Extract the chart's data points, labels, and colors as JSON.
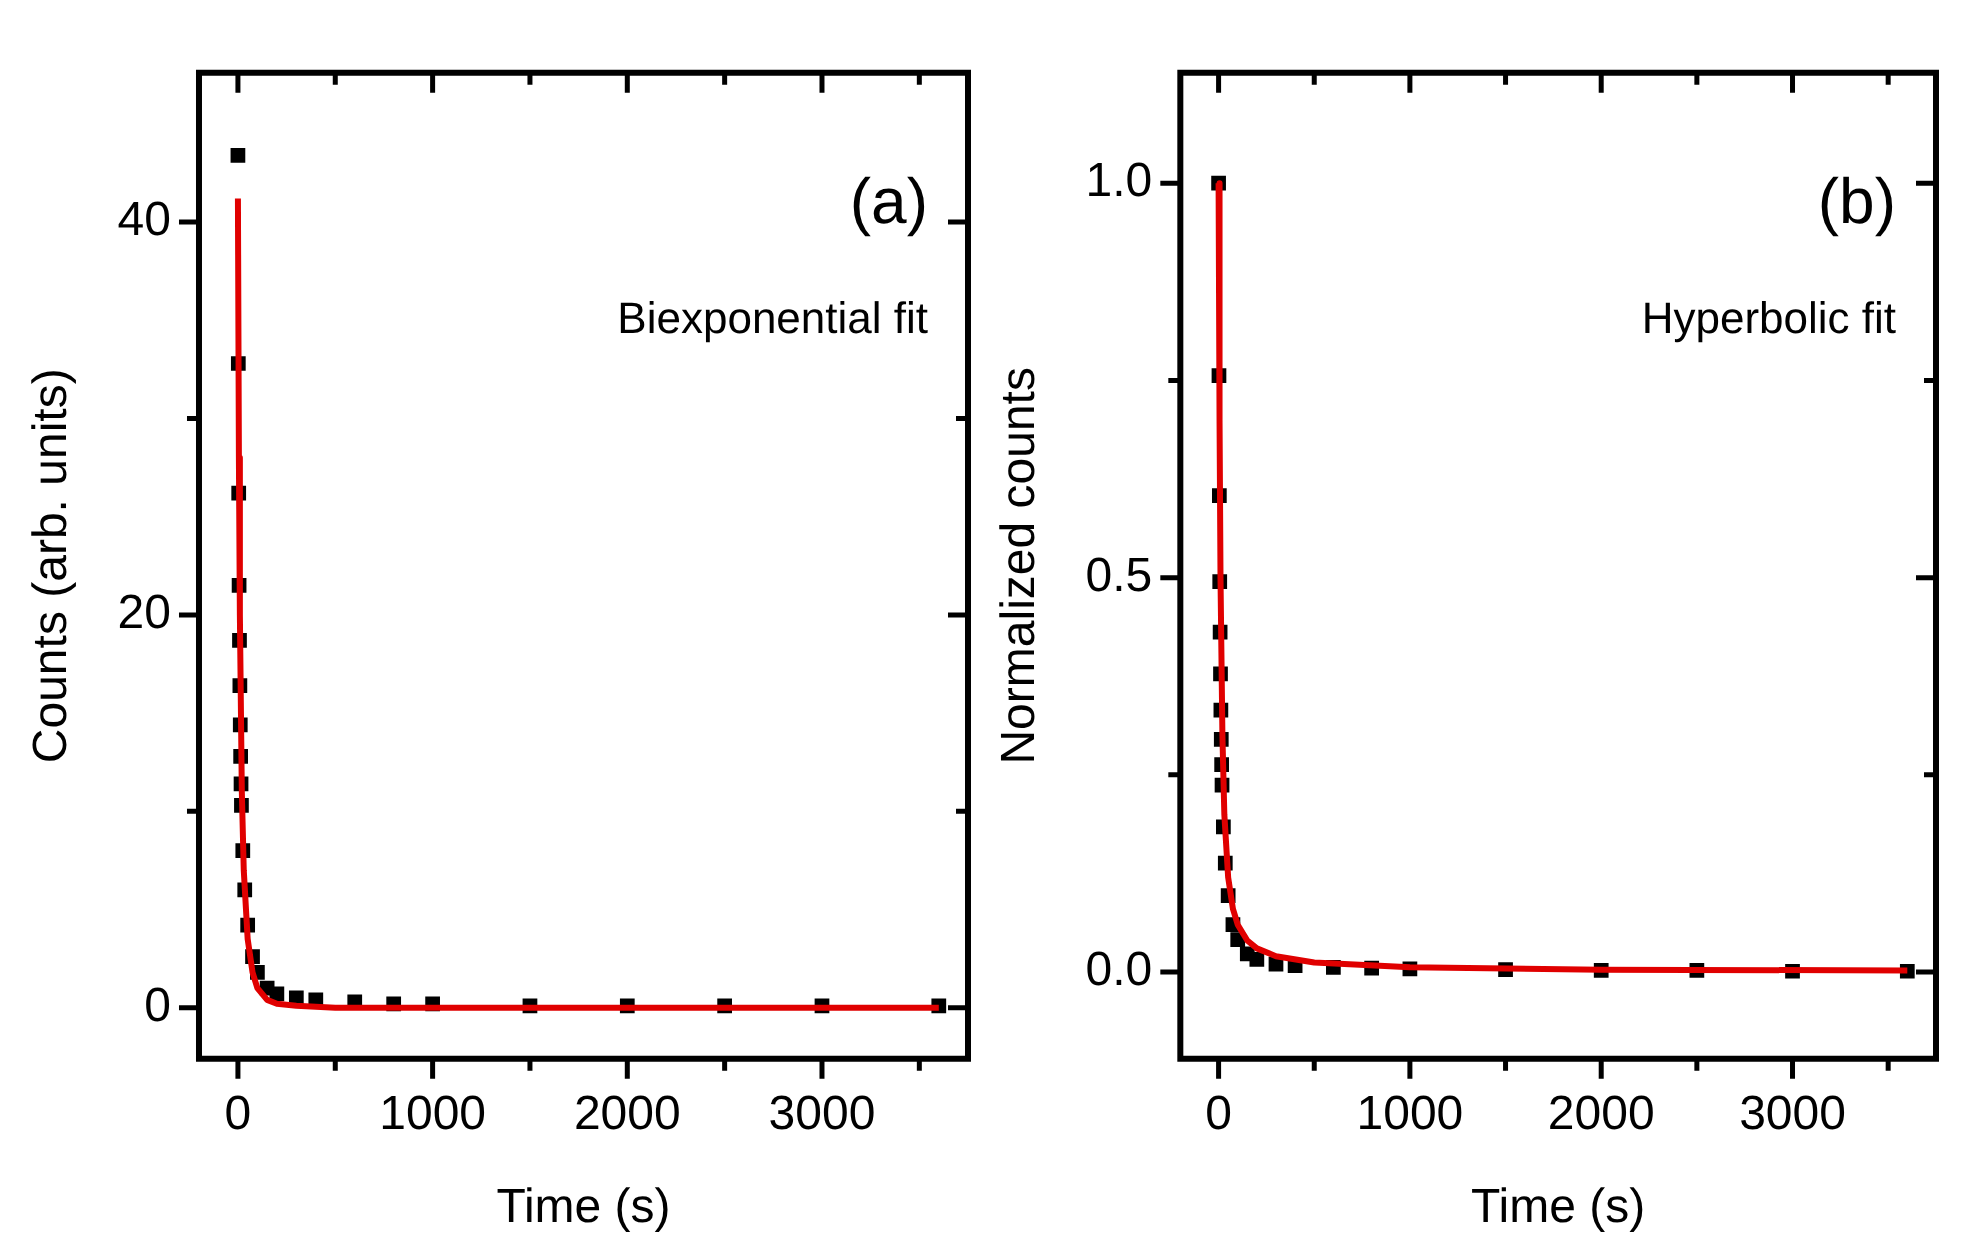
{
  "chart_data": [
    {
      "type": "line",
      "xlabel": "Time (s)",
      "ylabel": "Counts (arb. units)",
      "annotations": [
        "(a)",
        "Biexponential fit"
      ],
      "xlim": [
        -200,
        3750
      ],
      "xticks": [
        0,
        {
          "value": 500,
          "label": null
        },
        1000,
        {
          "value": 1500,
          "label": null
        },
        2000,
        {
          "value": 2500,
          "label": null
        },
        3000,
        {
          "value": 3500,
          "label": null
        }
      ],
      "ylim": [
        -2.6,
        47.6
      ],
      "yticks": [
        0,
        {
          "value": 10,
          "label": null
        },
        20,
        {
          "value": 30,
          "label": null
        },
        40
      ],
      "grid": false,
      "legend": false,
      "series": [
        {
          "type": "scatter",
          "marker": "square",
          "color": "#000000",
          "x": [
            0,
            2,
            4,
            6,
            8,
            10,
            12,
            14,
            16,
            18,
            25,
            35,
            50,
            75,
            100,
            150,
            200,
            300,
            400,
            600,
            800,
            1000,
            1500,
            2000,
            2500,
            3000,
            3600
          ],
          "values": [
            43.4,
            32.8,
            26.2,
            21.5,
            18.7,
            16.4,
            14.4,
            12.8,
            11.4,
            10.3,
            8.0,
            6.0,
            4.2,
            2.6,
            1.8,
            1.0,
            0.7,
            0.5,
            0.4,
            0.3,
            0.2,
            0.2,
            0.1,
            0.1,
            0.1,
            0.1,
            0.1
          ]
        },
        {
          "marker": "none",
          "color": "#e00000",
          "x": [
            0,
            5,
            10,
            20,
            30,
            50,
            75,
            100,
            150,
            200,
            300,
            500,
            1000,
            2000,
            3600
          ],
          "values": [
            41.2,
            28,
            20,
            11,
            7,
            3.5,
            1.8,
            1.0,
            0.4,
            0.2,
            0.1,
            0,
            0,
            0,
            0
          ]
        }
      ]
    },
    {
      "type": "line",
      "xlabel": "Time (s)",
      "ylabel": "Normalized counts",
      "annotations": [
        "(b)",
        "Hyperbolic fit"
      ],
      "xlim": [
        -200,
        3750
      ],
      "xticks": [
        0,
        {
          "value": 500,
          "label": null
        },
        1000,
        {
          "value": 1500,
          "label": null
        },
        2000,
        {
          "value": 2500,
          "label": null
        },
        3000,
        {
          "value": 3500,
          "label": null
        }
      ],
      "ylim": [
        -0.11,
        1.14
      ],
      "yticks": [
        {
          "value": 0,
          "label": "0.0"
        },
        {
          "value": 0.25,
          "label": null
        },
        0.5,
        {
          "value": 0.75,
          "label": null
        },
        {
          "value": 1,
          "label": "1.0"
        }
      ],
      "grid": false,
      "legend": false,
      "series": [
        {
          "type": "scatter",
          "marker": "square",
          "color": "#000000",
          "x": [
            0,
            2,
            4,
            6,
            8,
            10,
            12,
            14,
            16,
            18,
            25,
            35,
            50,
            75,
            100,
            150,
            200,
            300,
            400,
            600,
            800,
            1000,
            1500,
            2000,
            2500,
            3000,
            3600
          ],
          "values": [
            1.0,
            0.756,
            0.604,
            0.495,
            0.431,
            0.378,
            0.332,
            0.295,
            0.263,
            0.237,
            0.184,
            0.138,
            0.097,
            0.06,
            0.041,
            0.023,
            0.016,
            0.01,
            0.008,
            0.006,
            0.005,
            0.004,
            0.003,
            0.002,
            0.002,
            0.001,
            0.001
          ]
        },
        {
          "marker": "none",
          "color": "#e00000",
          "x": [
            0,
            5,
            10,
            20,
            30,
            50,
            75,
            100,
            150,
            200,
            300,
            500,
            1000,
            2000,
            3600
          ],
          "values": [
            1.0,
            0.7,
            0.5,
            0.3,
            0.2,
            0.12,
            0.08,
            0.06,
            0.04,
            0.03,
            0.02,
            0.012,
            0.006,
            0.003,
            0.002
          ]
        }
      ]
    }
  ]
}
